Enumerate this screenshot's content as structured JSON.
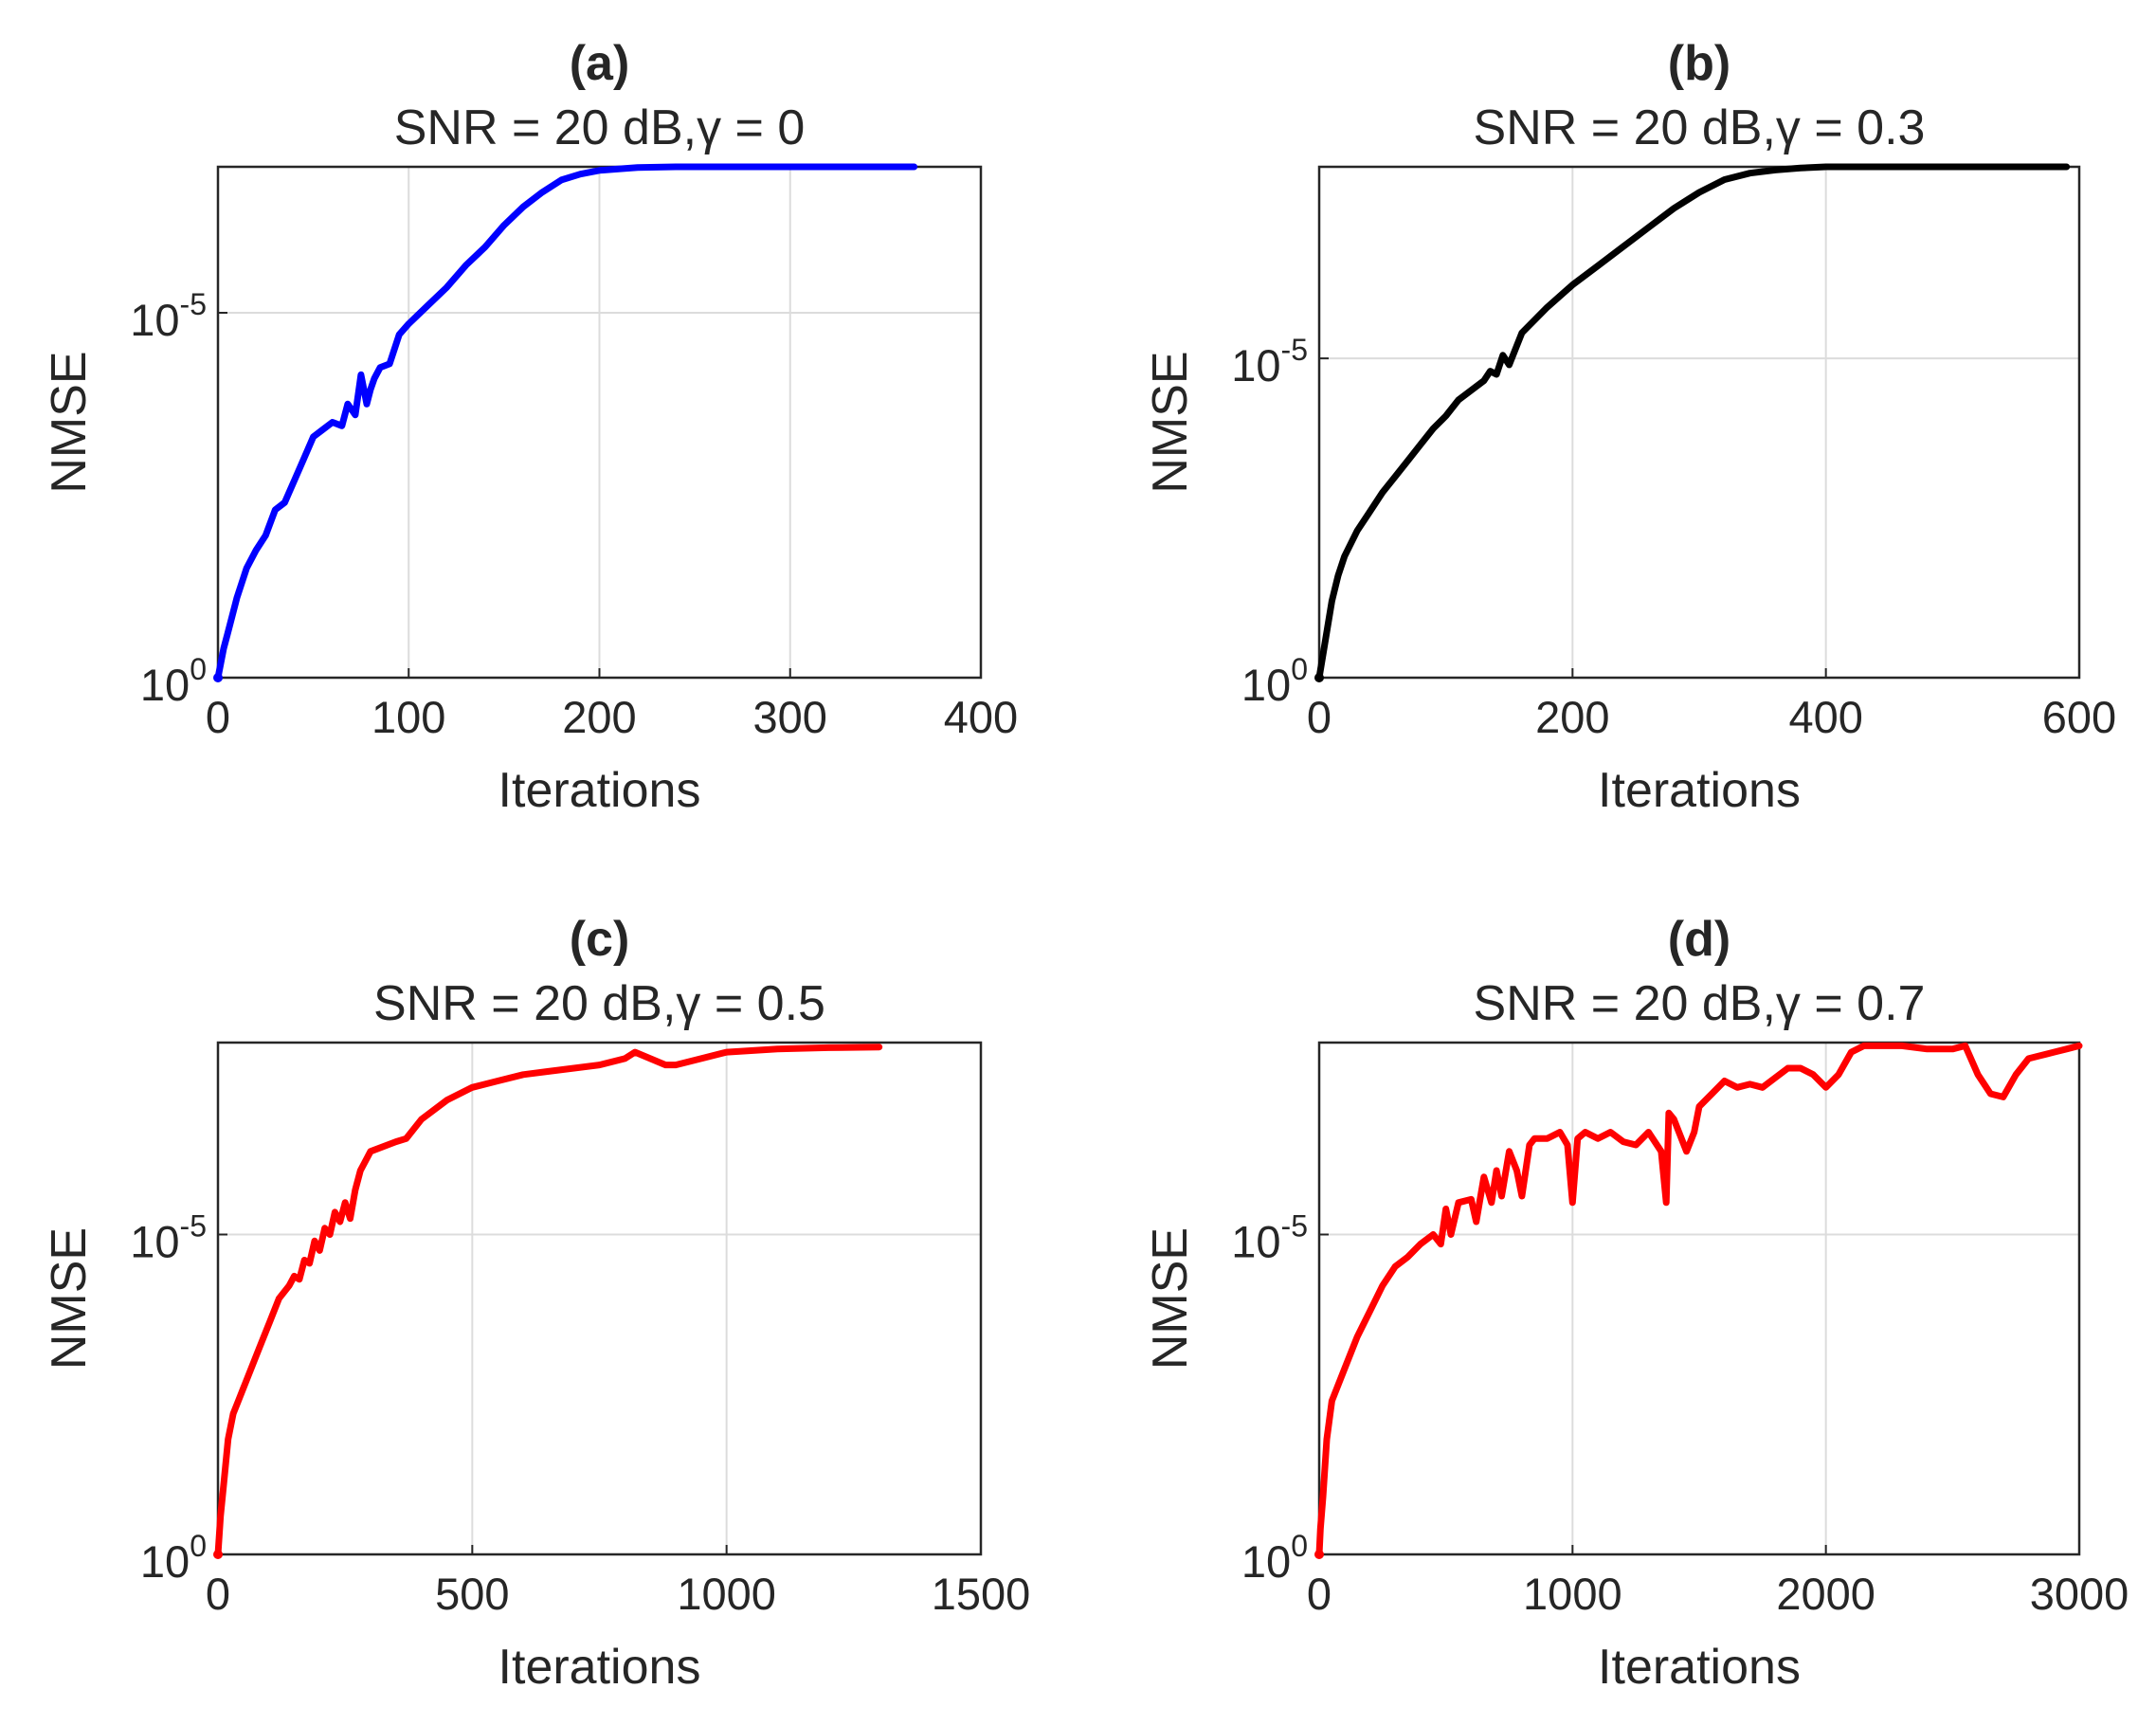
{
  "figure": {
    "panels": [
      {
        "label": "(a)",
        "title": "SNR = 20 dB,γ = 0"
      },
      {
        "label": "(b)",
        "title": "SNR = 20 dB,γ = 0.3"
      },
      {
        "label": "(c)",
        "title": "SNR = 20 dB,γ = 0.5"
      },
      {
        "label": "(d)",
        "title": "SNR = 20 dB,γ = 0.7"
      }
    ]
  },
  "chart_data": [
    {
      "type": "line",
      "panel_label": "(a)",
      "title": "SNR = 20 dB,γ = 0",
      "xlabel": "Iterations",
      "ylabel": "NMSE",
      "yscale": "log",
      "xlim": [
        0,
        400
      ],
      "ylim_log10": [
        -7,
        0
      ],
      "xticks": [
        0,
        100,
        200,
        300,
        400
      ],
      "yticks": [
        {
          "base": "10",
          "exp": "0",
          "log10": 0
        },
        {
          "base": "10",
          "exp": "-5",
          "log10": -5
        }
      ],
      "grid": true,
      "series": [
        {
          "name": "NMSE",
          "color": "#0000ff",
          "x": [
            0,
            3,
            5,
            10,
            15,
            20,
            25,
            30,
            35,
            40,
            45,
            50,
            55,
            60,
            65,
            68,
            72,
            75,
            78,
            80,
            82,
            85,
            90,
            95,
            100,
            110,
            120,
            130,
            140,
            150,
            160,
            170,
            180,
            190,
            200,
            210,
            220,
            240,
            260,
            280,
            300,
            330,
            365
          ],
          "log10_y": [
            0,
            -0.4,
            -0.6,
            -1.1,
            -1.5,
            -1.75,
            -1.95,
            -2.3,
            -2.4,
            -2.7,
            -3.0,
            -3.3,
            -3.4,
            -3.5,
            -3.45,
            -3.75,
            -3.6,
            -4.15,
            -3.75,
            -3.95,
            -4.1,
            -4.25,
            -4.3,
            -4.7,
            -4.85,
            -5.1,
            -5.35,
            -5.65,
            -5.9,
            -6.2,
            -6.45,
            -6.65,
            -6.82,
            -6.9,
            -6.95,
            -6.97,
            -6.99,
            -7.0,
            -7.0,
            -7.0,
            -7.0,
            -7.0,
            -7.0
          ]
        }
      ]
    },
    {
      "type": "line",
      "panel_label": "(b)",
      "title": "SNR = 20 dB,γ = 0.3",
      "xlabel": "Iterations",
      "ylabel": "NMSE",
      "yscale": "log",
      "xlim": [
        0,
        600
      ],
      "ylim_log10": [
        -8,
        0
      ],
      "xticks": [
        0,
        200,
        400,
        600
      ],
      "yticks": [
        {
          "base": "10",
          "exp": "0",
          "log10": 0
        },
        {
          "base": "10",
          "exp": "-5",
          "log10": -5
        }
      ],
      "grid": true,
      "series": [
        {
          "name": "NMSE",
          "color": "#000000",
          "x": [
            0,
            5,
            10,
            15,
            20,
            30,
            40,
            50,
            60,
            70,
            80,
            90,
            100,
            110,
            120,
            130,
            135,
            140,
            145,
            150,
            160,
            180,
            200,
            220,
            240,
            260,
            280,
            300,
            320,
            340,
            360,
            380,
            400,
            450,
            500,
            550,
            590
          ],
          "log10_y": [
            0,
            -0.6,
            -1.2,
            -1.6,
            -1.9,
            -2.3,
            -2.6,
            -2.9,
            -3.15,
            -3.4,
            -3.65,
            -3.9,
            -4.1,
            -4.35,
            -4.5,
            -4.65,
            -4.8,
            -4.75,
            -5.05,
            -4.9,
            -5.4,
            -5.8,
            -6.15,
            -6.45,
            -6.75,
            -7.05,
            -7.35,
            -7.6,
            -7.8,
            -7.9,
            -7.95,
            -7.98,
            -8.0,
            -8.0,
            -8.0,
            -8.0,
            -8.0
          ]
        }
      ]
    },
    {
      "type": "line",
      "panel_label": "(c)",
      "title": "SNR = 20 dB,γ = 0.5",
      "xlabel": "Iterations",
      "ylabel": "NMSE",
      "yscale": "log",
      "xlim": [
        0,
        1500
      ],
      "ylim_log10": [
        -8,
        0
      ],
      "xticks": [
        0,
        500,
        1000,
        1500
      ],
      "yticks": [
        {
          "base": "10",
          "exp": "0",
          "log10": 0
        },
        {
          "base": "10",
          "exp": "-5",
          "log10": -5
        }
      ],
      "grid": true,
      "series": [
        {
          "name": "NMSE",
          "color": "#ff0000",
          "x": [
            0,
            5,
            10,
            20,
            30,
            40,
            60,
            80,
            100,
            120,
            140,
            150,
            160,
            170,
            180,
            190,
            200,
            210,
            220,
            230,
            240,
            250,
            260,
            270,
            280,
            300,
            350,
            370,
            400,
            450,
            500,
            550,
            600,
            650,
            700,
            750,
            800,
            820,
            850,
            880,
            900,
            950,
            1000,
            1100,
            1200,
            1300
          ],
          "log10_y": [
            0,
            -0.6,
            -1.0,
            -1.8,
            -2.2,
            -2.4,
            -2.8,
            -3.2,
            -3.6,
            -4.0,
            -4.2,
            -4.35,
            -4.3,
            -4.6,
            -4.55,
            -4.9,
            -4.75,
            -5.1,
            -5.0,
            -5.35,
            -5.2,
            -5.5,
            -5.25,
            -5.7,
            -6.0,
            -6.3,
            -6.45,
            -6.5,
            -6.8,
            -7.1,
            -7.3,
            -7.4,
            -7.5,
            -7.55,
            -7.6,
            -7.65,
            -7.75,
            -7.85,
            -7.75,
            -7.65,
            -7.65,
            -7.75,
            -7.85,
            -7.9,
            -7.92,
            -7.93
          ]
        }
      ]
    },
    {
      "type": "line",
      "panel_label": "(d)",
      "title": "SNR = 20 dB,γ = 0.7",
      "xlabel": "Iterations",
      "ylabel": "NMSE",
      "yscale": "log",
      "xlim": [
        0,
        3000
      ],
      "ylim_log10": [
        -8,
        0
      ],
      "xticks": [
        0,
        1000,
        2000,
        3000
      ],
      "yticks": [
        {
          "base": "10",
          "exp": "0",
          "log10": 0
        },
        {
          "base": "10",
          "exp": "-5",
          "log10": -5
        }
      ],
      "grid": true,
      "series": [
        {
          "name": "NMSE",
          "color": "#ff0000",
          "x": [
            0,
            5,
            15,
            30,
            50,
            100,
            150,
            200,
            250,
            300,
            350,
            400,
            450,
            480,
            500,
            520,
            550,
            600,
            620,
            650,
            680,
            700,
            720,
            750,
            780,
            800,
            830,
            850,
            900,
            950,
            980,
            1000,
            1020,
            1050,
            1100,
            1150,
            1200,
            1250,
            1300,
            1350,
            1370,
            1380,
            1400,
            1450,
            1480,
            1500,
            1550,
            1600,
            1650,
            1700,
            1750,
            1800,
            1850,
            1900,
            1950,
            2000,
            2050,
            2100,
            2150,
            2200,
            2250,
            2300,
            2400,
            2500,
            2550,
            2600,
            2650,
            2700,
            2750,
            2800,
            2850,
            2900,
            2950,
            3000
          ],
          "log10_y": [
            0,
            -0.4,
            -0.9,
            -1.8,
            -2.4,
            -2.9,
            -3.4,
            -3.8,
            -4.2,
            -4.5,
            -4.65,
            -4.85,
            -5.0,
            -4.85,
            -5.4,
            -5.0,
            -5.5,
            -5.55,
            -5.2,
            -5.9,
            -5.5,
            -6.0,
            -5.6,
            -6.3,
            -6.0,
            -5.6,
            -6.4,
            -6.5,
            -6.5,
            -6.6,
            -6.4,
            -5.5,
            -6.5,
            -6.6,
            -6.5,
            -6.6,
            -6.45,
            -6.4,
            -6.6,
            -6.3,
            -5.5,
            -6.9,
            -6.8,
            -6.3,
            -6.6,
            -7.0,
            -7.2,
            -7.4,
            -7.3,
            -7.35,
            -7.3,
            -7.45,
            -7.6,
            -7.6,
            -7.5,
            -7.3,
            -7.5,
            -7.85,
            -7.95,
            -7.95,
            -7.95,
            -7.95,
            -7.9,
            -7.9,
            -7.95,
            -7.5,
            -7.2,
            -7.15,
            -7.5,
            -7.75,
            -7.8,
            -7.85,
            -7.9,
            -7.95
          ]
        }
      ]
    }
  ]
}
